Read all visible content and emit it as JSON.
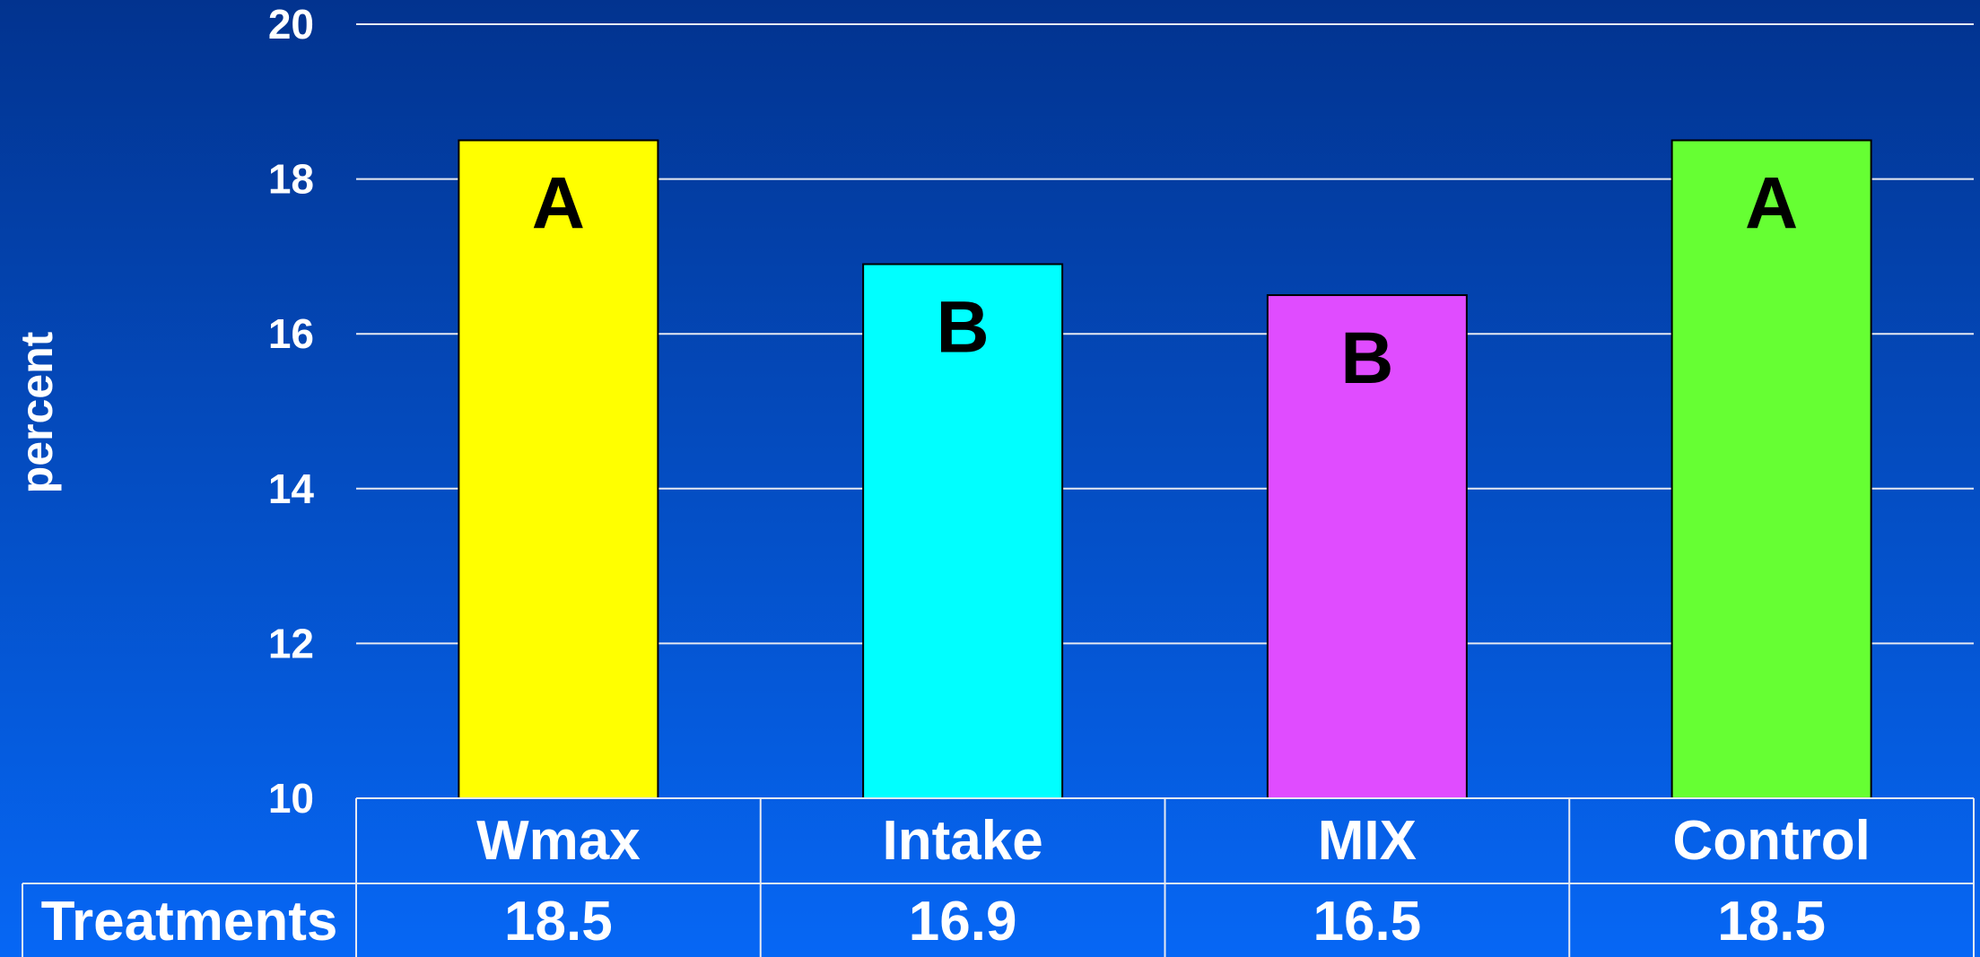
{
  "chart_data": {
    "type": "bar",
    "categories": [
      "Wmax",
      "Intake",
      "MIX",
      "Control"
    ],
    "values": [
      18.5,
      16.9,
      16.5,
      18.5
    ],
    "value_labels": [
      "18.5",
      "16.9",
      "16.5",
      "18.5"
    ],
    "significance_letters": [
      "A",
      "B",
      "B",
      "A"
    ],
    "bar_colors": [
      "#FFFF00",
      "#00FFFF",
      "#E04CFF",
      "#66FF33"
    ],
    "title": "",
    "ylabel": "percent",
    "xlabel": "",
    "ylim": [
      10,
      20
    ],
    "yticks": [
      10,
      12,
      14,
      16,
      18,
      20
    ],
    "ytick_labels": [
      "10",
      "12",
      "14",
      "16",
      "18",
      "20"
    ],
    "grid": true,
    "legend": "none",
    "data_table": {
      "row_label": "Treatments",
      "values": [
        "18.5",
        "16.9",
        "16.5",
        "18.5"
      ]
    }
  },
  "colors": {
    "background_top": "#02338F",
    "background_bottom": "#0667F5",
    "text": "#FFFFFF",
    "gridline": "#E6E9F2",
    "letter": "#000000"
  }
}
